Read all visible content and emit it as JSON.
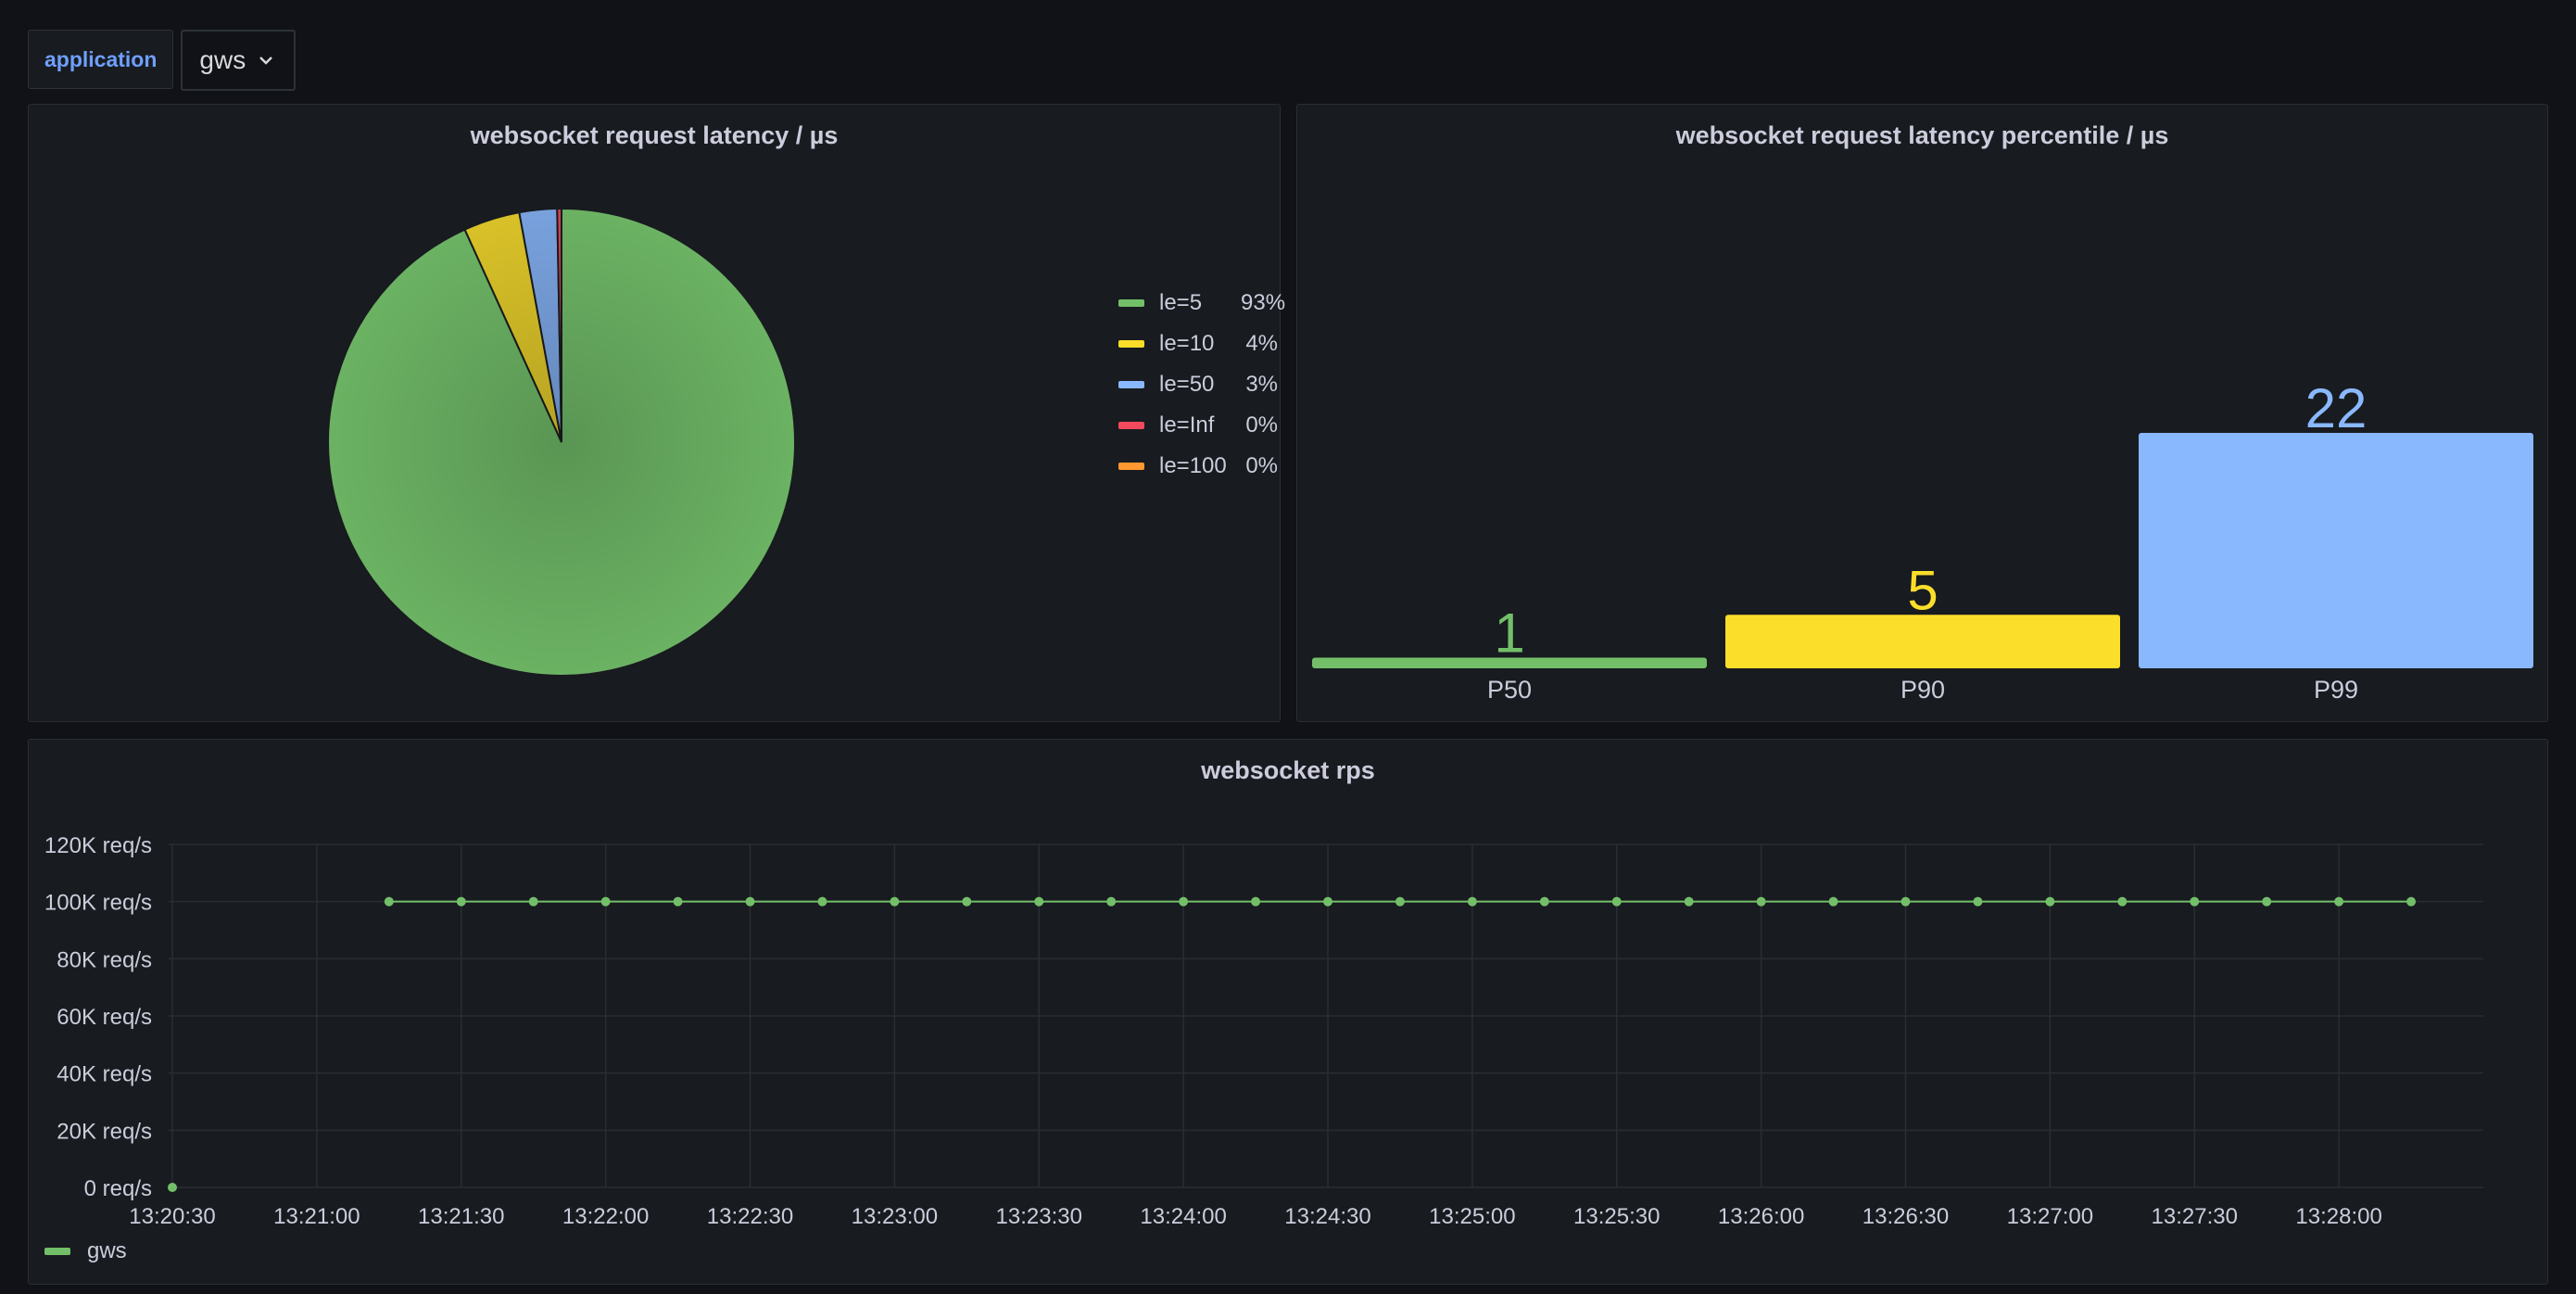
{
  "variables": {
    "label": "application",
    "value": "gws"
  },
  "pie_panel": {
    "title": "websocket request latency / µs",
    "legend": [
      {
        "label": "le=5",
        "value": "93%",
        "color": "#73bf69"
      },
      {
        "label": "le=10",
        "value": "4%",
        "color": "#fade2a"
      },
      {
        "label": "le=50",
        "value": "3%",
        "color": "#8ab8ff"
      },
      {
        "label": "le=Inf",
        "value": "0%",
        "color": "#f2495c"
      },
      {
        "label": "le=100",
        "value": "0%",
        "color": "#ff9830"
      }
    ]
  },
  "bar_panel": {
    "title": "websocket request latency percentile / µs"
  },
  "rps_panel": {
    "title": "websocket rps",
    "legend": {
      "label": "gws",
      "color": "#73bf69"
    }
  },
  "chart_data": [
    {
      "type": "pie",
      "title": "websocket request latency / µs",
      "categories": [
        "le=5",
        "le=10",
        "le=50",
        "le=Inf",
        "le=100"
      ],
      "values": [
        93.2,
        3.9,
        2.6,
        0.3,
        0.0
      ],
      "colors": [
        "#73bf69",
        "#fade2a",
        "#8ab8ff",
        "#f2495c",
        "#ff9830"
      ],
      "legend": "right"
    },
    {
      "type": "bar",
      "title": "websocket request latency percentile / µs",
      "categories": [
        "P50",
        "P90",
        "P99"
      ],
      "values": [
        1,
        5,
        22
      ],
      "colors": [
        "#73bf69",
        "#fade2a",
        "#8ab8ff"
      ],
      "ylim": [
        0,
        22
      ]
    },
    {
      "type": "line",
      "title": "websocket rps",
      "series": [
        {
          "name": "gws",
          "x": [
            "13:20:30",
            "13:21:15",
            "13:21:30",
            "13:21:45",
            "13:22:00",
            "13:22:15",
            "13:22:30",
            "13:22:45",
            "13:23:00",
            "13:23:15",
            "13:23:30",
            "13:23:45",
            "13:24:00",
            "13:24:15",
            "13:24:30",
            "13:24:45",
            "13:25:00",
            "13:25:15",
            "13:25:30",
            "13:25:45",
            "13:26:00",
            "13:26:15",
            "13:26:30",
            "13:26:45",
            "13:27:00",
            "13:27:15",
            "13:27:30",
            "13:27:45",
            "13:28:00",
            "13:28:15"
          ],
          "values": [
            0,
            100000,
            100000,
            100000,
            100000,
            100000,
            100000,
            100000,
            100000,
            100000,
            100000,
            100000,
            100000,
            100000,
            100000,
            100000,
            100000,
            100000,
            100000,
            100000,
            100000,
            100000,
            100000,
            100000,
            100000,
            100000,
            100000,
            100000,
            100000,
            100000
          ],
          "color": "#73bf69"
        }
      ],
      "x_ticks": [
        "13:20:30",
        "13:21:00",
        "13:21:30",
        "13:22:00",
        "13:22:30",
        "13:23:00",
        "13:23:30",
        "13:24:00",
        "13:24:30",
        "13:25:00",
        "13:25:30",
        "13:26:00",
        "13:26:30",
        "13:27:00",
        "13:27:30",
        "13:28:00"
      ],
      "y_ticks": [
        "0 req/s",
        "20K req/s",
        "40K req/s",
        "60K req/s",
        "80K req/s",
        "100K req/s",
        "120K req/s"
      ],
      "ylim": [
        0,
        120000
      ],
      "xlim": [
        "13:20:30",
        "13:28:30"
      ],
      "grid": true,
      "legend": "bottom-left"
    }
  ]
}
